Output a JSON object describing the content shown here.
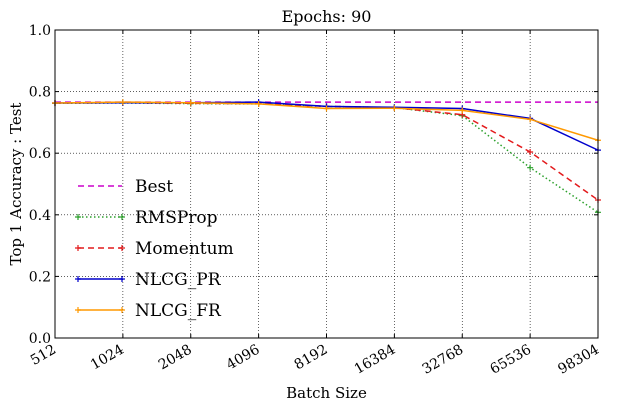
{
  "chart_data": {
    "type": "line",
    "title": "Epochs: 90",
    "xlabel": "Batch Size",
    "ylabel": "Top 1 Accuracy : Test",
    "x_scale": "categorical",
    "categories": [
      "512",
      "1024",
      "2048",
      "4096",
      "8192",
      "16384",
      "32768",
      "65536",
      "98304"
    ],
    "ylim": [
      0.0,
      1.0
    ],
    "y_ticks": [
      "0.0",
      "0.2",
      "0.4",
      "0.6",
      "0.8",
      "1.0"
    ],
    "grid": true,
    "legend_position": "lower-left",
    "series": [
      {
        "name": "Best",
        "color": "#cc00cc",
        "style": "dashed",
        "marker": "none",
        "values": [
          0.766,
          0.766,
          0.766,
          0.766,
          0.766,
          0.766,
          0.766,
          0.766,
          0.766
        ]
      },
      {
        "name": "RMSProp",
        "color": "#2ca02c",
        "style": "dotted",
        "marker": "plus",
        "values": [
          0.762,
          0.763,
          0.761,
          0.76,
          0.752,
          0.748,
          0.722,
          0.553,
          0.408
        ]
      },
      {
        "name": "Momentum",
        "color": "#e31a1c",
        "style": "dashed",
        "marker": "plus",
        "values": [
          0.763,
          0.764,
          0.762,
          0.761,
          0.752,
          0.748,
          0.725,
          0.604,
          0.448
        ]
      },
      {
        "name": "NLCG_PR",
        "color": "#0000cc",
        "style": "solid",
        "marker": "plus",
        "values": [
          0.763,
          0.764,
          0.764,
          0.766,
          0.752,
          0.749,
          0.745,
          0.713,
          0.61
        ]
      },
      {
        "name": "NLCG_FR",
        "color": "#ff9900",
        "style": "solid",
        "marker": "plus",
        "values": [
          0.763,
          0.766,
          0.764,
          0.76,
          0.745,
          0.746,
          0.739,
          0.71,
          0.642
        ]
      }
    ]
  }
}
